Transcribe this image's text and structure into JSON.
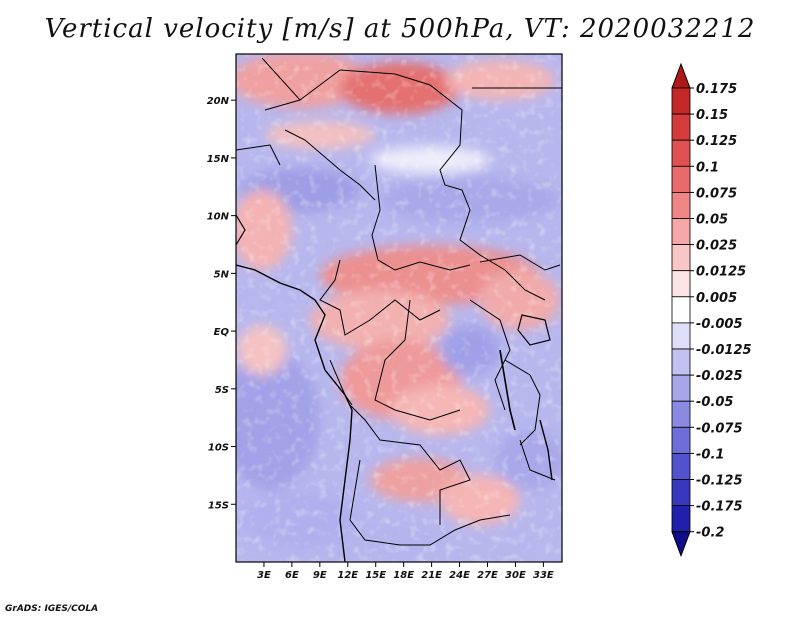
{
  "title": "Vertical velocity [m/s] at 500hPa, VT: 2020032212",
  "credit": "GrADS: IGES/COLA",
  "map": {
    "lon_range": [
      0,
      35
    ],
    "lat_range": [
      -20,
      24
    ],
    "lat_ticks": [
      {
        "label": "20N",
        "value": 20
      },
      {
        "label": "15N",
        "value": 15
      },
      {
        "label": "10N",
        "value": 10
      },
      {
        "label": "5N",
        "value": 5
      },
      {
        "label": "EQ",
        "value": 0
      },
      {
        "label": "5S",
        "value": -5
      },
      {
        "label": "10S",
        "value": -10
      },
      {
        "label": "15S",
        "value": -15
      }
    ],
    "lon_ticks": [
      {
        "label": "3E",
        "value": 3
      },
      {
        "label": "6E",
        "value": 6
      },
      {
        "label": "9E",
        "value": 9
      },
      {
        "label": "12E",
        "value": 12
      },
      {
        "label": "15E",
        "value": 15
      },
      {
        "label": "18E",
        "value": 18
      },
      {
        "label": "21E",
        "value": 21
      },
      {
        "label": "24E",
        "value": 24
      },
      {
        "label": "27E",
        "value": 27
      },
      {
        "label": "30E",
        "value": 30
      },
      {
        "label": "33E",
        "value": 33
      }
    ]
  },
  "colorbar": {
    "levels": [
      "0.175",
      "0.15",
      "0.125",
      "0.1",
      "0.075",
      "0.05",
      "0.025",
      "0.0125",
      "0.005",
      "-0.005",
      "-0.0125",
      "-0.025",
      "-0.05",
      "-0.075",
      "-0.1",
      "-0.125",
      "-0.175",
      "-0.2"
    ],
    "colors": [
      "#b01818",
      "#c42828",
      "#d43c3c",
      "#e05252",
      "#e86a6a",
      "#ef8686",
      "#f5a6a6",
      "#f9c6c6",
      "#fde4e4",
      "#ffffff",
      "#dedef9",
      "#c2c2f2",
      "#a6a6ea",
      "#8a8ae2",
      "#6e6ed8",
      "#5252cc",
      "#3838be",
      "#2020aa",
      "#0e0e8a"
    ]
  }
}
